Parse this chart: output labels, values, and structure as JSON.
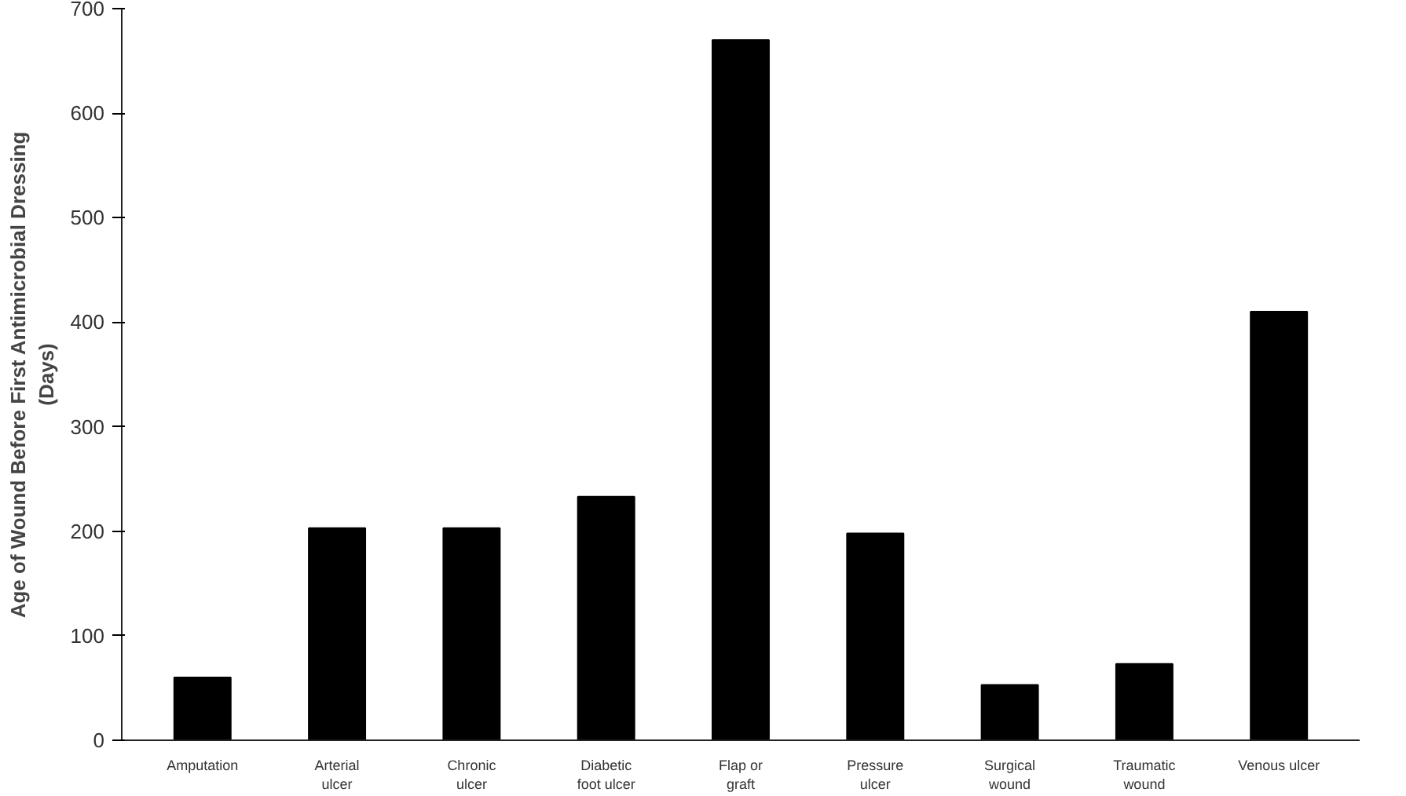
{
  "chart_data": {
    "type": "bar",
    "ylabel": "Age of Wound Before First Antimicrobial Dressing (Days)",
    "categories": [
      "Amputation",
      "Arterial ulcer",
      "Chronic ulcer",
      "Diabetic foot ulcer",
      "Flap or graft",
      "Pressure ulcer",
      "Surgical wound",
      "Traumatic wound",
      "Venous ulcer"
    ],
    "values": [
      60,
      203,
      203,
      233,
      670,
      198,
      53,
      73,
      410
    ],
    "color": "#000000",
    "ylim": [
      0,
      700
    ],
    "yticks": [
      0,
      100,
      200,
      300,
      400,
      500,
      600,
      700
    ],
    "grid": false
  }
}
